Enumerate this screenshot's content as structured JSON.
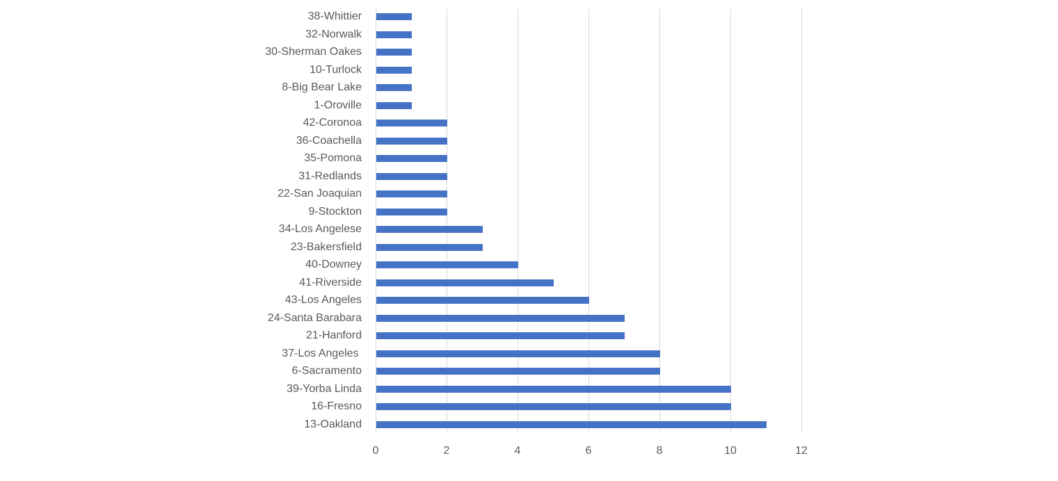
{
  "chart_data": {
    "type": "bar",
    "orientation": "horizontal",
    "title": "",
    "xlabel": "",
    "ylabel": "",
    "categories": [
      "38-Whittier",
      "32-Norwalk",
      "30-Sherman Oakes",
      "10-Turlock",
      "8-Big Bear Lake",
      "1-Oroville",
      "42-Coronoa",
      "36-Coachella",
      "35-Pomona",
      "31-Redlands",
      "22-San Joaquian",
      "9-Stockton",
      "34-Los Angelese",
      "23-Bakersfield",
      "40-Downey",
      "41-Riverside",
      "43-Los Angeles",
      "24-Santa Barabara",
      "21-Hanford",
      "37-Los Angeles ",
      "6-Sacramento",
      "39-Yorba Linda",
      "16-Fresno",
      "13-Oakland"
    ],
    "values": [
      1,
      1,
      1,
      1,
      1,
      1,
      2,
      2,
      2,
      2,
      2,
      2,
      3,
      3,
      4,
      5,
      6,
      7,
      7,
      8,
      8,
      10,
      10,
      11
    ],
    "xlim": [
      0,
      12
    ],
    "xticks": [
      "0",
      "2",
      "4",
      "6",
      "8",
      "10",
      "12"
    ],
    "grid": "vertical",
    "legend": "none",
    "bar_color": "#4472c4",
    "grid_color": "#d9d9d9",
    "text_color": "#595959"
  }
}
